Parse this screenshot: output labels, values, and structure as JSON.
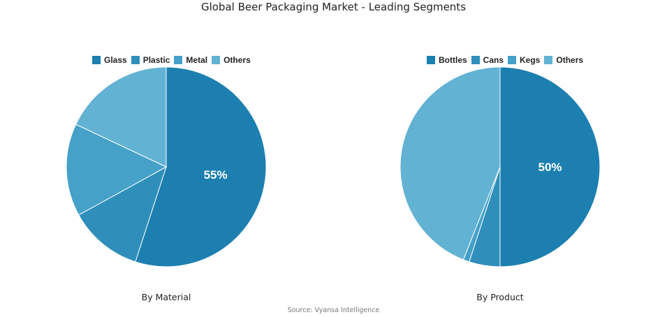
{
  "title": "Global Beer Packaging Market - Leading Segments",
  "source": "Source: Vyansa Intelligence",
  "chart_data": [
    {
      "type": "pie",
      "subtitle": "By Material",
      "categories": [
        "Glass",
        "Plastic",
        "Metal",
        "Others"
      ],
      "values": [
        55,
        12,
        15,
        18
      ],
      "colors": [
        "#1c7fb0",
        "#2f8fba",
        "#45a1c8",
        "#62b2d3"
      ],
      "data_labels": [
        "55%",
        "",
        "",
        ""
      ],
      "legend_position": "top"
    },
    {
      "type": "pie",
      "subtitle": "By Product",
      "categories": [
        "Bottles",
        "Cans",
        "Kegs",
        "Others"
      ],
      "values": [
        50,
        5,
        1,
        44
      ],
      "colors": [
        "#1c7fb0",
        "#2f8fba",
        "#45a1c8",
        "#62b2d3"
      ],
      "data_labels": [
        "50%",
        "",
        "",
        ""
      ],
      "legend_position": "top"
    }
  ]
}
